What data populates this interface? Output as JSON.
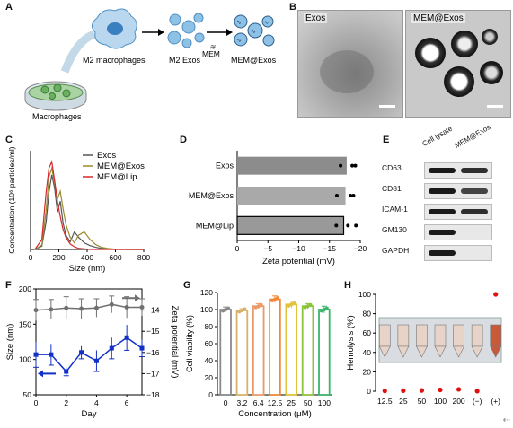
{
  "panels": {
    "a": {
      "letter": "A",
      "labels": {
        "macrophages": "Macrophages",
        "m2": "M2 macrophages",
        "exos": "M2 Exos",
        "mem": "MEM",
        "memexos": "MEM@Exos"
      }
    },
    "b": {
      "letter": "B",
      "labels": {
        "left": "Exos",
        "right": "MEM@Exos"
      }
    },
    "c": {
      "letter": "C"
    },
    "d": {
      "letter": "D"
    },
    "e": {
      "letter": "E",
      "columns": [
        "Cell lysate",
        "MEM@Exos"
      ],
      "rows": [
        "CD63",
        "CD81",
        "ICAM-1",
        "GM130",
        "GAPDH"
      ],
      "band_intensity": [
        [
          1,
          0.9
        ],
        [
          1,
          0.8
        ],
        [
          1,
          0.9
        ],
        [
          1,
          0
        ],
        [
          1,
          0
        ]
      ]
    },
    "f": {
      "letter": "F"
    },
    "g": {
      "letter": "G"
    },
    "h": {
      "letter": "H"
    }
  },
  "colors": {
    "exos": "#555555",
    "memexos": "#9b8a2e",
    "memlip": "#d42a2a",
    "sizeseries": "#1030c8",
    "zeta": "#707070",
    "hemo": "#e01010",
    "barfill": "#d9d9d9"
  },
  "chart_data": [
    {
      "panel": "C",
      "type": "line",
      "xlabel": "Size (nm)",
      "ylabel": "Concentration (10⁶ particles/ml)",
      "xlim": [
        0,
        800
      ],
      "ylim": [
        0,
        9
      ],
      "xticks": [
        "0",
        "200",
        "400",
        "600",
        "800"
      ],
      "x": [
        30,
        80,
        110,
        130,
        150,
        170,
        190,
        210,
        230,
        250,
        280,
        310,
        340,
        380,
        420,
        460,
        500,
        550,
        600,
        700,
        800
      ],
      "series": [
        {
          "name": "Exos",
          "values": [
            0,
            0.3,
            2.5,
            5.2,
            6.8,
            5.6,
            3.4,
            4.4,
            2.4,
            1.3,
            0.7,
            1.6,
            1.1,
            0.6,
            0.35,
            0.2,
            0.1,
            0.05,
            0,
            0,
            0
          ]
        },
        {
          "name": "MEM@Exos",
          "values": [
            0,
            0.4,
            3.5,
            6.6,
            7.4,
            6.1,
            4.6,
            5.3,
            3.7,
            2.3,
            1.1,
            0.6,
            1.3,
            1.6,
            0.9,
            0.45,
            0.2,
            0.08,
            0.03,
            0,
            0
          ]
        },
        {
          "name": "MEM@Lip",
          "values": [
            0,
            0.9,
            5.2,
            7.4,
            8.0,
            6.3,
            4.4,
            3.0,
            1.8,
            1.1,
            0.5,
            0.25,
            0.1,
            0.05,
            0,
            0,
            0,
            0,
            0,
            0,
            0
          ]
        }
      ]
    },
    {
      "panel": "D",
      "type": "bar",
      "orientation": "horizontal",
      "xlabel": "Zeta potential (mV)",
      "xlim": [
        0,
        -20
      ],
      "xticks": [
        "0",
        "−5",
        "−10",
        "−15",
        "−20"
      ],
      "categories": [
        "Exos",
        "MEM@Exos",
        "MEM@Lip"
      ],
      "values": [
        -17.8,
        -17.6,
        -17.3
      ],
      "points": [
        [
          -16.8,
          -18.7,
          -19.2
        ],
        [
          -16.2,
          -18.4,
          -18.9
        ],
        [
          -16.1,
          -18.0,
          -19.3
        ]
      ]
    },
    {
      "panel": "F",
      "type": "line",
      "xlabel": "Day",
      "ylabel": "Size (nm)",
      "y2label": "Zeta potential (mV)",
      "xlim": [
        0,
        7
      ],
      "ylim": [
        50,
        200
      ],
      "y2lim": [
        -18,
        -13
      ],
      "xticks": [
        "0",
        "2",
        "4",
        "6"
      ],
      "yticks": [
        "50",
        "100",
        "150",
        "200"
      ],
      "y2ticks": [
        "−14",
        "−15",
        "−16",
        "−17",
        "−18"
      ],
      "x": [
        0,
        1,
        2,
        3,
        4,
        5,
        6,
        7
      ],
      "series": [
        {
          "name": "Size",
          "values": [
            170,
            171,
            173,
            172,
            173,
            178,
            174,
            174
          ],
          "err": [
            15,
            14,
            16,
            14,
            13,
            12,
            15,
            12
          ]
        },
        {
          "name": "Zeta potential",
          "values": [
            -16.1,
            -16.1,
            -16.9,
            -16.0,
            -16.4,
            -15.8,
            -15.3,
            -15.8
          ],
          "err": [
            0.6,
            0.5,
            0.2,
            0.3,
            0.5,
            0.5,
            0.6,
            0.4
          ]
        }
      ]
    },
    {
      "panel": "G",
      "type": "bar",
      "xlabel": "Concentration (μM)",
      "ylabel": "Cell viability (%)",
      "ylim": [
        0,
        120
      ],
      "yticks": [
        "0",
        "20",
        "40",
        "60",
        "80",
        "100",
        "120"
      ],
      "categories": [
        "0",
        "3.2",
        "6.4",
        "12.5",
        "25",
        "50",
        "100"
      ],
      "values": [
        100,
        99,
        104,
        112,
        106,
        104,
        100
      ],
      "err": [
        3,
        2,
        3,
        4,
        4,
        3,
        4
      ],
      "bar_colors": [
        "#8a8a8a",
        "#d7b26a",
        "#e99a6a",
        "#f08a3a",
        "#e2c23a",
        "#8cc43a",
        "#3ab56a"
      ]
    },
    {
      "panel": "H",
      "type": "scatter",
      "ylabel": "Hemolysis (%)",
      "ylim": [
        0,
        100
      ],
      "yticks": [
        "0",
        "20",
        "40",
        "60",
        "80",
        "100"
      ],
      "categories": [
        "12.5",
        "25",
        "50",
        "100",
        "200",
        "(−)",
        "(+)"
      ],
      "values": [
        0.3,
        0.6,
        0.8,
        1.4,
        1.9,
        0.1,
        100
      ]
    }
  ]
}
